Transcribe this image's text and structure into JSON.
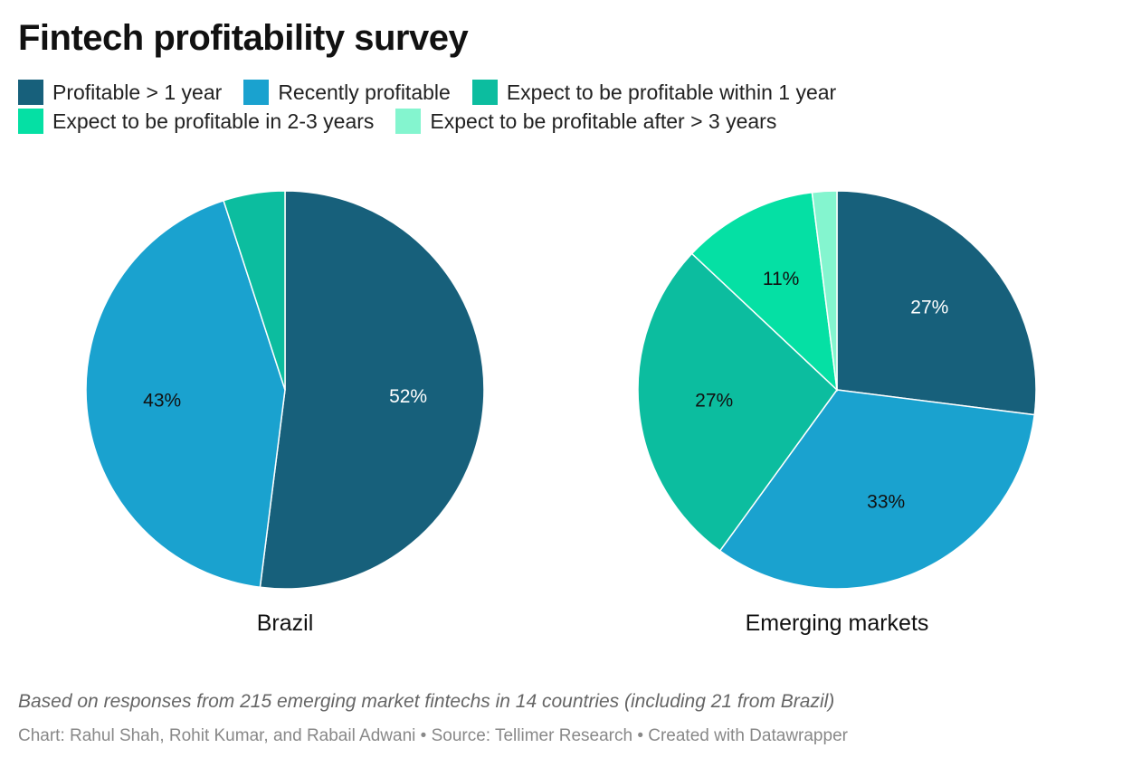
{
  "title": "Fintech profitability survey",
  "legend": [
    {
      "label": "Profitable > 1 year",
      "color": "#17607b"
    },
    {
      "label": "Recently profitable",
      "color": "#1aa2cf"
    },
    {
      "label": "Expect to be profitable within 1 year",
      "color": "#0cbd9f"
    },
    {
      "label": "Expect to be profitable in 2-3 years",
      "color": "#05e0a4"
    },
    {
      "label": "Expect to be profitable after > 3 years",
      "color": "#84f5cf"
    }
  ],
  "chart_data": [
    {
      "type": "pie",
      "title": "Brazil",
      "categories": [
        "Profitable > 1 year",
        "Recently profitable",
        "Expect to be profitable within 1 year",
        "Expect to be profitable in 2-3 years",
        "Expect to be profitable after > 3 years"
      ],
      "values": [
        52,
        43,
        5,
        0,
        0
      ],
      "labels": [
        "52%",
        "43%",
        "",
        "",
        ""
      ]
    },
    {
      "type": "pie",
      "title": "Emerging markets",
      "categories": [
        "Profitable > 1 year",
        "Recently profitable",
        "Expect to be profitable within 1 year",
        "Expect to be profitable in 2-3 years",
        "Expect to be profitable after > 3 years"
      ],
      "values": [
        27,
        33,
        27,
        11,
        2
      ],
      "labels": [
        "27%",
        "33%",
        "27%",
        "11%",
        ""
      ]
    }
  ],
  "note": "Based on responses from 215 emerging market fintechs in 14 countries (including 21 from Brazil)",
  "credits": "Chart: Rahul Shah, Rohit Kumar, and Rabail Adwani • Source: Tellimer Research • Created with Datawrapper"
}
